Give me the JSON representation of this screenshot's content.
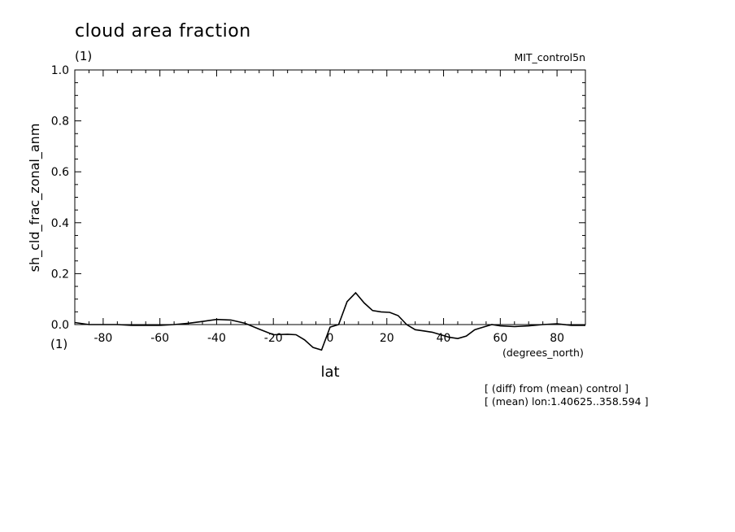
{
  "chart_data": {
    "type": "line",
    "title": "cloud area fraction",
    "units": "(1)",
    "x_units_label": "(1)",
    "dataset_label": "MIT_control5n",
    "xlabel": "lat",
    "xlabel_units": "(degrees_north)",
    "ylabel": "sh_cld_frac_zonal_anm",
    "xlim": [
      -90,
      90
    ],
    "ylim": [
      0.0,
      1.0
    ],
    "x_ticks": [
      -80,
      -60,
      -40,
      -20,
      0,
      20,
      40,
      60,
      80
    ],
    "x_tick_labels": [
      "-80",
      "-60",
      "-40",
      "-20",
      "0",
      "20",
      "40",
      "60",
      "80"
    ],
    "y_ticks": [
      0.0,
      0.2,
      0.4,
      0.6,
      0.8,
      1.0
    ],
    "y_tick_labels": [
      "0.0",
      "0.2",
      "0.4",
      "0.6",
      "0.8",
      "1.0"
    ],
    "grid": false,
    "notes": [
      "[ (diff) from (mean) control ]",
      "[ (mean) lon:1.40625..358.594 ]"
    ],
    "series": [
      {
        "x": [
          -90,
          -85,
          -80,
          -75,
          -70,
          -65,
          -60,
          -55,
          -50,
          -45,
          -40,
          -35,
          -30,
          -25,
          -20,
          -15,
          -12,
          -9,
          -6,
          -3,
          0,
          3,
          6,
          9,
          12,
          15,
          18,
          21,
          24,
          27,
          30,
          33,
          36,
          39,
          42,
          45,
          48,
          51,
          54,
          57,
          60,
          65,
          70,
          75,
          80,
          85,
          90
        ],
        "y": [
          0.008,
          0.0,
          0.0,
          0.0,
          -0.003,
          -0.003,
          -0.003,
          0.0,
          0.005,
          0.012,
          0.02,
          0.018,
          0.005,
          -0.018,
          -0.04,
          -0.038,
          -0.04,
          -0.06,
          -0.09,
          -0.1,
          -0.01,
          0.0,
          0.09,
          0.125,
          0.085,
          0.055,
          0.05,
          0.048,
          0.035,
          0.0,
          -0.02,
          -0.025,
          -0.03,
          -0.04,
          -0.05,
          -0.055,
          -0.045,
          -0.02,
          -0.01,
          0.0,
          -0.005,
          -0.008,
          -0.005,
          0.0,
          0.003,
          -0.003,
          -0.003
        ]
      }
    ]
  }
}
